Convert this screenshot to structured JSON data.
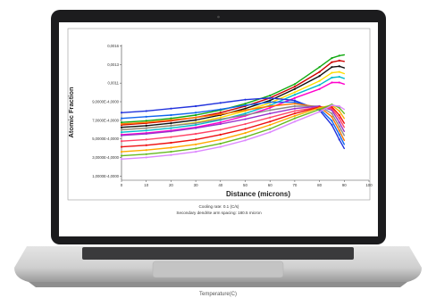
{
  "chart_data": {
    "type": "line",
    "xlabel": "Distance (microns)",
    "ylabel": "Atomic Fraction",
    "xlim": [
      0,
      100
    ],
    "x_ticks": [
      0,
      10,
      20,
      30,
      40,
      50,
      60,
      70,
      80,
      90,
      100
    ],
    "y_tick_labels": [
      "1,0000E-4,0000",
      "3,0000E-4,0000",
      "5,0000E-4,0000",
      "7,0000E-4,0000",
      "9,0000E-4,0000",
      "0,0011",
      "0,0013",
      "0,0016"
    ],
    "grid": false,
    "x": [
      0,
      10,
      20,
      30,
      40,
      50,
      60,
      70,
      80,
      85,
      88,
      90
    ],
    "series": [
      {
        "color": "#11aa11",
        "values": [
          7.1,
          7.3,
          7.6,
          8.0,
          8.6,
          9.4,
          10.4,
          11.8,
          13.9,
          15.0,
          15.3,
          15.4
        ]
      },
      {
        "color": "#cc0000",
        "values": [
          6.8,
          7.0,
          7.3,
          7.7,
          8.3,
          9.1,
          10.1,
          11.5,
          13.3,
          14.5,
          14.7,
          14.6
        ]
      },
      {
        "color": "#111111",
        "values": [
          6.5,
          6.7,
          7.0,
          7.4,
          8.0,
          8.8,
          9.8,
          11.2,
          12.8,
          13.9,
          14.0,
          13.8
        ]
      },
      {
        "color": "#ffdd00",
        "values": [
          6.2,
          6.4,
          6.7,
          7.1,
          7.7,
          8.5,
          9.5,
          10.8,
          12.2,
          13.2,
          13.3,
          13.1
        ]
      },
      {
        "color": "#00bbcc",
        "values": [
          5.9,
          6.1,
          6.4,
          6.8,
          7.4,
          8.2,
          9.2,
          10.5,
          11.7,
          12.6,
          12.7,
          12.5
        ]
      },
      {
        "color": "#ff00cc",
        "values": [
          5.6,
          5.8,
          6.1,
          6.5,
          7.1,
          7.9,
          8.9,
          10.1,
          11.2,
          12.0,
          12.0,
          11.8
        ]
      },
      {
        "color": "#2233dd",
        "values": [
          8.3,
          8.5,
          8.8,
          9.1,
          9.5,
          9.9,
          10.1,
          9.8,
          8.6,
          6.8,
          5.0,
          3.9
        ]
      },
      {
        "color": "#1166ee",
        "values": [
          7.6,
          7.8,
          8.0,
          8.3,
          8.7,
          9.2,
          9.6,
          9.6,
          8.8,
          7.3,
          5.6,
          4.4
        ]
      },
      {
        "color": "#ff7700",
        "values": [
          6.9,
          7.1,
          7.4,
          7.7,
          8.1,
          8.6,
          9.1,
          9.4,
          9.0,
          7.8,
          6.1,
          4.9
        ]
      },
      {
        "color": "#888888",
        "values": [
          6.2,
          6.4,
          6.7,
          7.0,
          7.5,
          8.0,
          8.6,
          9.1,
          9.1,
          8.2,
          6.6,
          5.5
        ]
      },
      {
        "color": "#9933cc",
        "values": [
          5.5,
          5.7,
          6.0,
          6.4,
          6.9,
          7.5,
          8.2,
          8.8,
          9.1,
          8.6,
          7.1,
          6.0
        ]
      },
      {
        "color": "#ff4466",
        "values": [
          4.8,
          5.0,
          5.3,
          5.7,
          6.2,
          6.9,
          7.7,
          8.5,
          9.0,
          8.8,
          7.6,
          6.5
        ]
      },
      {
        "color": "#ee1111",
        "values": [
          4.1,
          4.3,
          4.6,
          5.0,
          5.6,
          6.3,
          7.2,
          8.2,
          9.0,
          9.0,
          8.0,
          7.0
        ]
      },
      {
        "color": "#ffaa00",
        "values": [
          3.5,
          3.7,
          4.0,
          4.4,
          5.0,
          5.8,
          6.8,
          7.9,
          8.9,
          9.2,
          8.5,
          7.6
        ]
      },
      {
        "color": "#66bb22",
        "values": [
          3.0,
          3.2,
          3.5,
          3.9,
          4.5,
          5.3,
          6.3,
          7.6,
          8.7,
          9.3,
          8.9,
          8.2
        ]
      },
      {
        "color": "#dd88ff",
        "values": [
          2.6,
          2.8,
          3.1,
          3.5,
          4.1,
          4.9,
          5.9,
          7.2,
          8.4,
          9.2,
          9.1,
          8.7
        ]
      }
    ]
  },
  "captions": {
    "line1": "Cooling rate: 0.1 (C/s)",
    "line2": "Secondary dendrite arm spacing: 180.5 micron"
  },
  "below_text": "Temperature(C)"
}
